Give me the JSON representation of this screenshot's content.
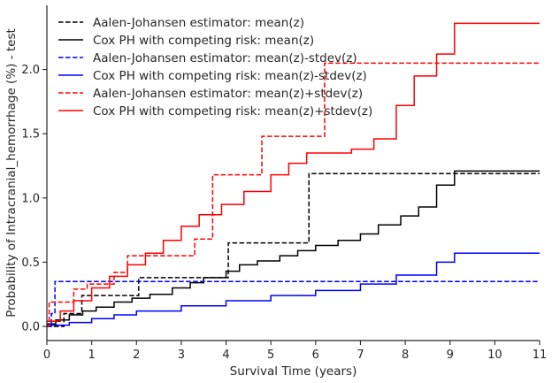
{
  "chart_data": {
    "type": "line",
    "step": true,
    "title": "",
    "xlabel": "Survival Time (years)",
    "ylabel": "Probability of Intracranial_hemorrhage (%) - test",
    "xlim": [
      0,
      11
    ],
    "ylim": [
      -0.11,
      2.5
    ],
    "xticks": [
      "0",
      "1",
      "2",
      "3",
      "4",
      "5",
      "6",
      "7",
      "8",
      "9",
      "10",
      "11"
    ],
    "yticks": [
      "0.0",
      "0.5",
      "1.0",
      "1.5",
      "2.0"
    ],
    "grid": false,
    "legend_position": "top-left",
    "series": [
      {
        "name": "Aalen-Johansen estimator: mean(z)",
        "color": "#000000",
        "dash": "dashed",
        "x": [
          0,
          0.38,
          0.78,
          2.05,
          4.05,
          5.85,
          9.1,
          11
        ],
        "y": [
          0,
          0.1,
          0.24,
          0.38,
          0.65,
          1.19,
          1.19,
          1.19
        ]
      },
      {
        "name": "Cox PH with competing risk: mean(z)",
        "color": "#000000",
        "dash": "solid",
        "x": [
          0,
          0.2,
          0.5,
          0.8,
          1.1,
          1.5,
          1.9,
          2.3,
          2.8,
          3.2,
          3.5,
          4.0,
          4.3,
          4.7,
          5.2,
          5.6,
          6.0,
          6.5,
          7.0,
          7.4,
          7.9,
          8.3,
          8.7,
          9.1,
          11
        ],
        "y": [
          0.02,
          0.05,
          0.09,
          0.12,
          0.15,
          0.19,
          0.22,
          0.25,
          0.3,
          0.34,
          0.38,
          0.43,
          0.48,
          0.51,
          0.55,
          0.59,
          0.63,
          0.67,
          0.72,
          0.79,
          0.86,
          0.93,
          1.1,
          1.21,
          1.21
        ]
      },
      {
        "name": "Aalen-Johansen estimator: mean(z)-stdev(z)",
        "color": "#0000ff",
        "dash": "dashed",
        "x": [
          0,
          0.1,
          0.18,
          11
        ],
        "y": [
          0,
          0.1,
          0.35,
          0.35
        ]
      },
      {
        "name": "Cox PH with competing risk: mean(z)-stdev(z)",
        "color": "#0000ff",
        "dash": "solid",
        "x": [
          0,
          0.5,
          1.0,
          1.5,
          2.0,
          3.0,
          4.0,
          5.0,
          6.0,
          7.0,
          7.8,
          8.7,
          9.1,
          11
        ],
        "y": [
          0.01,
          0.03,
          0.06,
          0.09,
          0.12,
          0.16,
          0.2,
          0.24,
          0.28,
          0.33,
          0.4,
          0.5,
          0.57,
          0.57
        ]
      },
      {
        "name": "Aalen-Johansen estimator: mean(z)+stdev(z)",
        "color": "#ff0000",
        "dash": "dashed",
        "x": [
          0,
          0.05,
          0.6,
          0.9,
          1.5,
          1.8,
          3.3,
          3.7,
          4.8,
          6.2,
          11
        ],
        "y": [
          0,
          0.19,
          0.29,
          0.33,
          0.42,
          0.55,
          0.68,
          1.18,
          1.48,
          2.05,
          2.05
        ]
      },
      {
        "name": "Cox PH with competing risk: mean(z)+stdev(z)",
        "color": "#ff0000",
        "dash": "solid",
        "x": [
          0,
          0.3,
          0.6,
          1.0,
          1.4,
          1.8,
          2.2,
          2.6,
          3.0,
          3.4,
          3.9,
          4.4,
          5.0,
          5.4,
          5.8,
          6.2,
          6.8,
          7.3,
          7.8,
          8.2,
          8.7,
          9.1,
          11
        ],
        "y": [
          0.04,
          0.12,
          0.2,
          0.3,
          0.39,
          0.48,
          0.57,
          0.67,
          0.78,
          0.87,
          0.95,
          1.05,
          1.18,
          1.27,
          1.35,
          1.35,
          1.38,
          1.46,
          1.72,
          1.95,
          2.12,
          2.36,
          2.36
        ]
      }
    ]
  }
}
